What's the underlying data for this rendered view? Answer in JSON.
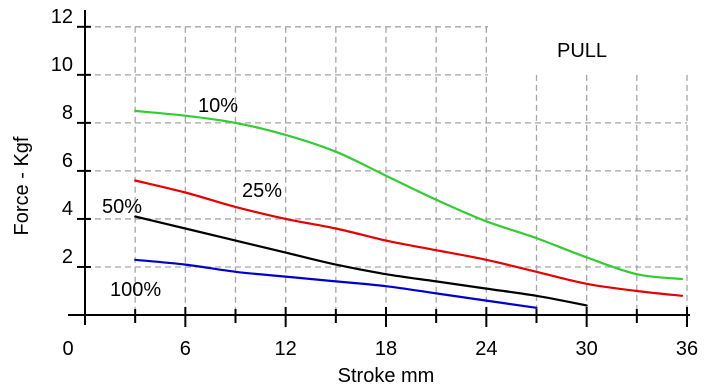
{
  "chart_data": {
    "type": "line",
    "title": "",
    "xlabel": "Stroke mm",
    "ylabel": "Force - Kgf",
    "annotation": "PULL",
    "x_ticks": [
      "0",
      "6",
      "12",
      "18",
      "24",
      "30",
      "36"
    ],
    "y_ticks": [
      "2",
      "4",
      "6",
      "8",
      "10",
      "12"
    ],
    "xlim": [
      0,
      36
    ],
    "ylim": [
      0,
      12.7
    ],
    "grid": true,
    "series": [
      {
        "name": "10%",
        "color": "#33cc33",
        "x": [
          3,
          6,
          9,
          12,
          15,
          18,
          21,
          24,
          27,
          30,
          33,
          35.7
        ],
        "y": [
          8.5,
          8.3,
          8.0,
          7.5,
          6.8,
          5.8,
          4.8,
          3.9,
          3.2,
          2.4,
          1.7,
          1.5
        ]
      },
      {
        "name": "25%",
        "color": "#e60000",
        "x": [
          3,
          6,
          9,
          12,
          15,
          18,
          21,
          24,
          27,
          30,
          33,
          35.7
        ],
        "y": [
          5.6,
          5.1,
          4.5,
          4.0,
          3.6,
          3.1,
          2.7,
          2.3,
          1.8,
          1.3,
          1.0,
          0.8
        ]
      },
      {
        "name": "50%",
        "color": "#000000",
        "x": [
          3,
          6,
          9,
          12,
          15,
          18,
          21,
          24,
          27,
          30
        ],
        "y": [
          4.1,
          3.6,
          3.1,
          2.6,
          2.1,
          1.7,
          1.4,
          1.1,
          0.8,
          0.4
        ]
      },
      {
        "name": "100%",
        "color": "#0000cc",
        "x": [
          3,
          6,
          9,
          12,
          15,
          18,
          21,
          24,
          27
        ],
        "y": [
          2.3,
          2.1,
          1.8,
          1.6,
          1.4,
          1.2,
          0.9,
          0.6,
          0.3
        ]
      }
    ]
  }
}
